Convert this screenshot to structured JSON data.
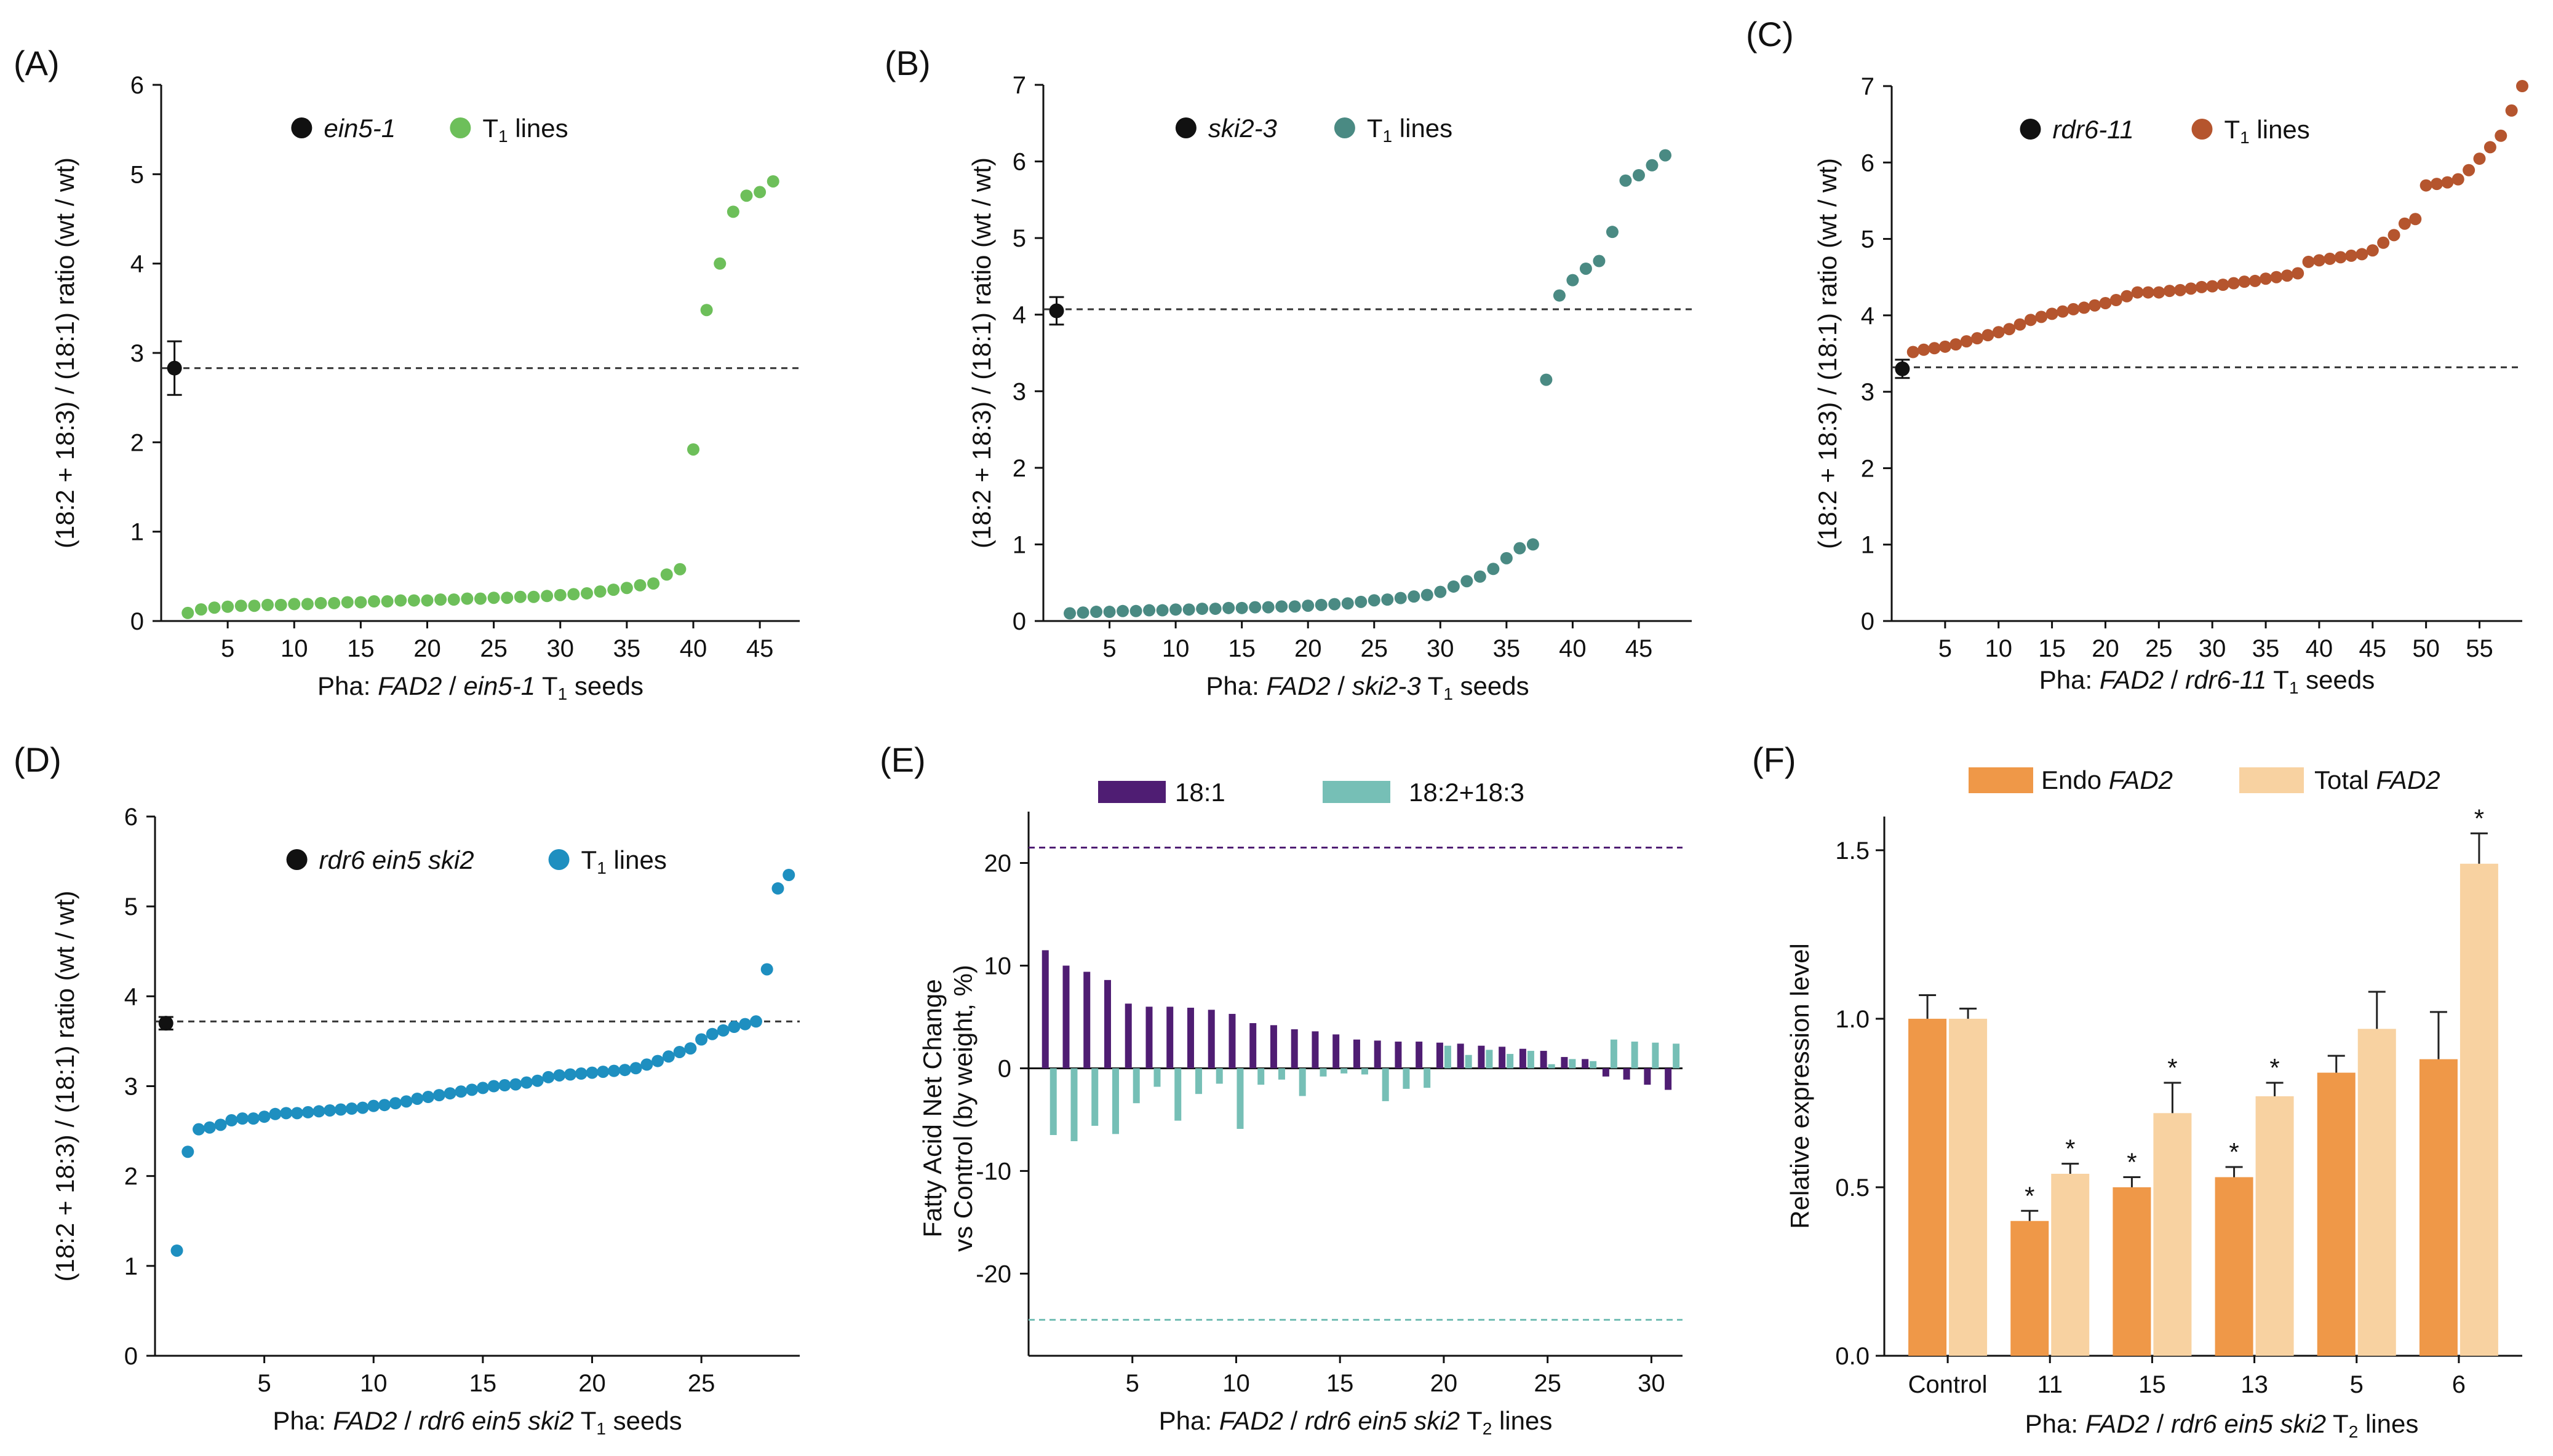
{
  "colors": {
    "black": "#111111",
    "green": "#6dbf5a",
    "teal": "#4a8a83",
    "rust": "#b5552e",
    "blue": "#1e8fc0",
    "purple": "#4f1d73",
    "mint": "#76bfb6",
    "orange": "#ef9848",
    "peach": "#f8d2a1"
  },
  "chart_data": [
    {
      "panel": "(A)",
      "type": "scatter",
      "xlabel_prefix": "Pha: ",
      "xlabel_gene": "FAD2",
      "xlabel_mid": " / ",
      "xlabel_genotype": "ein5-1",
      "xlabel_suffix": " T",
      "xlabel_subscript": "1",
      "xlabel_end": " seeds",
      "ylabel": "(18:2 + 18:3) / (18:1) ratio (wt / wt)",
      "xlim": [
        0,
        48
      ],
      "ylim": [
        0,
        6
      ],
      "xticks": [
        5,
        10,
        15,
        20,
        25,
        30,
        35,
        40,
        45
      ],
      "yticks": [
        0,
        1,
        2,
        3,
        4,
        5,
        6
      ],
      "legend": [
        {
          "label": "ein5-1",
          "italic": true,
          "color": "black"
        },
        {
          "label": "T",
          "sub": "1",
          "rest": " lines",
          "color": "green"
        }
      ],
      "control": {
        "x": 1,
        "y": 2.83,
        "err": 0.3
      },
      "reference_line": 2.83,
      "series_x_start": 2,
      "values": [
        0.09,
        0.13,
        0.15,
        0.16,
        0.17,
        0.17,
        0.18,
        0.18,
        0.19,
        0.19,
        0.2,
        0.2,
        0.21,
        0.21,
        0.22,
        0.22,
        0.23,
        0.23,
        0.23,
        0.24,
        0.24,
        0.25,
        0.25,
        0.26,
        0.26,
        0.27,
        0.27,
        0.28,
        0.29,
        0.3,
        0.31,
        0.33,
        0.35,
        0.37,
        0.4,
        0.42,
        0.52,
        0.58,
        1.92,
        3.48,
        4.0,
        4.58,
        4.76,
        4.8,
        4.92
      ]
    },
    {
      "panel": "(B)",
      "type": "scatter",
      "xlabel_prefix": "Pha: ",
      "xlabel_gene": "FAD2",
      "xlabel_mid": " / ",
      "xlabel_genotype": "ski2-3",
      "xlabel_suffix": " T",
      "xlabel_subscript": "1",
      "xlabel_end": " seeds",
      "ylabel": "(18:2 + 18:3) / (18:1) ratio (wt / wt)",
      "xlim": [
        0,
        49
      ],
      "ylim": [
        0,
        7
      ],
      "xticks": [
        5,
        10,
        15,
        20,
        25,
        30,
        35,
        40,
        45
      ],
      "yticks": [
        0,
        1,
        2,
        3,
        4,
        5,
        6,
        7
      ],
      "legend": [
        {
          "label": "ski2-3",
          "italic": true,
          "color": "black"
        },
        {
          "label": "T",
          "sub": "1",
          "rest": " lines",
          "color": "teal"
        }
      ],
      "control": {
        "x": 1,
        "y": 4.05,
        "err": 0.18
      },
      "reference_line": 4.07,
      "series_x_start": 2,
      "values": [
        0.1,
        0.11,
        0.12,
        0.12,
        0.13,
        0.13,
        0.14,
        0.14,
        0.15,
        0.15,
        0.16,
        0.16,
        0.17,
        0.17,
        0.18,
        0.18,
        0.19,
        0.19,
        0.2,
        0.21,
        0.22,
        0.23,
        0.25,
        0.27,
        0.28,
        0.3,
        0.32,
        0.34,
        0.38,
        0.45,
        0.52,
        0.58,
        0.68,
        0.82,
        0.95,
        1.0,
        3.15,
        4.25,
        4.45,
        4.6,
        4.7,
        5.08,
        5.75,
        5.82,
        5.95,
        6.08
      ]
    },
    {
      "panel": "(C)",
      "type": "scatter",
      "xlabel_prefix": "Pha: ",
      "xlabel_gene": "FAD2",
      "xlabel_mid": " / ",
      "xlabel_genotype": "rdr6-11",
      "xlabel_suffix": " T",
      "xlabel_subscript": "1",
      "xlabel_end": " seeds",
      "ylabel": "(18:2 + 18:3) / (18:1) ratio (wt / wt)",
      "xlim": [
        0,
        59
      ],
      "ylim": [
        0,
        7
      ],
      "xticks": [
        5,
        10,
        15,
        20,
        25,
        30,
        35,
        40,
        45,
        50,
        55
      ],
      "yticks": [
        0,
        1,
        2,
        3,
        4,
        5,
        6,
        7
      ],
      "legend": [
        {
          "label": "rdr6-11",
          "italic": true,
          "color": "black"
        },
        {
          "label": "T",
          "sub": "1",
          "rest": " lines",
          "color": "rust"
        }
      ],
      "control": {
        "x": 1,
        "y": 3.3,
        "err": 0.12
      },
      "reference_line": 3.32,
      "series_x_start": 2,
      "values": [
        3.52,
        3.55,
        3.57,
        3.59,
        3.62,
        3.66,
        3.7,
        3.74,
        3.78,
        3.82,
        3.88,
        3.94,
        3.98,
        4.02,
        4.05,
        4.08,
        4.1,
        4.13,
        4.16,
        4.2,
        4.25,
        4.3,
        4.3,
        4.3,
        4.32,
        4.33,
        4.35,
        4.37,
        4.38,
        4.4,
        4.42,
        4.44,
        4.45,
        4.48,
        4.5,
        4.52,
        4.55,
        4.7,
        4.72,
        4.74,
        4.76,
        4.78,
        4.8,
        4.85,
        4.95,
        5.05,
        5.2,
        5.26,
        5.7,
        5.72,
        5.74,
        5.78,
        5.9,
        6.05,
        6.2,
        6.35,
        6.68,
        7.0
      ]
    },
    {
      "panel": "(D)",
      "type": "scatter",
      "xlabel_prefix": "Pha: ",
      "xlabel_gene": "FAD2",
      "xlabel_mid": " / ",
      "xlabel_genotype": "rdr6 ein5 ski2",
      "xlabel_suffix": " T",
      "xlabel_subscript": "1",
      "xlabel_end": " seeds",
      "ylabel": "(18:2 + 18:3) / (18:1) ratio (wt / wt)",
      "xlim": [
        0,
        29.5
      ],
      "ylim": [
        0,
        6
      ],
      "xticks": [
        5,
        10,
        15,
        20,
        25
      ],
      "yticks": [
        0,
        1,
        2,
        3,
        4,
        5,
        6
      ],
      "legend": [
        {
          "label": "rdr6 ein5 ski2",
          "italic": true,
          "color": "black"
        },
        {
          "label": "T",
          "sub": "1",
          "rest": " lines",
          "color": "blue"
        }
      ],
      "control": {
        "x": 0.5,
        "y": 3.7,
        "err": 0.07
      },
      "reference_line": 3.72,
      "series_x_start": 1,
      "series_x_step": 0.5,
      "values": [
        1.17,
        2.27,
        2.52,
        2.54,
        2.57,
        2.62,
        2.64,
        2.64,
        2.66,
        2.69,
        2.7,
        2.7,
        2.71,
        2.72,
        2.73,
        2.74,
        2.75,
        2.76,
        2.78,
        2.79,
        2.81,
        2.83,
        2.86,
        2.88,
        2.9,
        2.92,
        2.94,
        2.96,
        2.98,
        3.0,
        3.01,
        3.02,
        3.04,
        3.06,
        3.1,
        3.12,
        3.13,
        3.14,
        3.15,
        3.16,
        3.17,
        3.18,
        3.2,
        3.24,
        3.28,
        3.33,
        3.38,
        3.42,
        3.52,
        3.58,
        3.62,
        3.66,
        3.69,
        3.72,
        4.3,
        5.2,
        5.35
      ]
    },
    {
      "panel": "(E)",
      "type": "bar",
      "xlabel_prefix": "Pha: ",
      "xlabel_gene": "FAD2",
      "xlabel_mid": " / ",
      "xlabel_genotype": "rdr6 ein5 ski2",
      "xlabel_suffix": " T",
      "xlabel_subscript": "2",
      "xlabel_end": " lines",
      "ylabel_line1": "Fatty Acid Net Change",
      "ylabel_line2": "vs Control (by weight, %)",
      "xlim": [
        0,
        31.5
      ],
      "ylim": [
        -28,
        25
      ],
      "xticks": [
        5,
        10,
        15,
        20,
        25,
        30
      ],
      "yticks": [
        -20,
        -10,
        0,
        10,
        20
      ],
      "legend": [
        {
          "label": "18:1",
          "color": "purple"
        },
        {
          "label": "18:2+18:3",
          "color": "mint"
        }
      ],
      "reference_lines": [
        {
          "y": 21.5,
          "color": "purple"
        },
        {
          "y": -24.5,
          "color": "mint"
        }
      ],
      "categories": [
        1,
        2,
        3,
        4,
        5,
        6,
        7,
        8,
        9,
        10,
        11,
        12,
        13,
        14,
        15,
        16,
        17,
        18,
        19,
        20,
        21,
        22,
        23,
        24,
        25,
        26,
        27,
        28,
        29,
        30,
        31
      ],
      "series": [
        {
          "name": "18:1",
          "values": [
            11.5,
            10.0,
            9.4,
            8.6,
            6.3,
            6.0,
            6.0,
            5.9,
            5.7,
            5.3,
            4.4,
            4.2,
            3.8,
            3.6,
            3.3,
            2.8,
            2.7,
            2.6,
            2.6,
            2.5,
            2.4,
            2.2,
            2.1,
            1.9,
            1.7,
            1.1,
            0.9,
            -0.8,
            -1.1,
            -1.6,
            -2.1
          ]
        },
        {
          "name": "18:2+18:3",
          "values": [
            -6.5,
            -7.1,
            -5.6,
            -6.4,
            -3.4,
            -1.8,
            -5.1,
            -2.5,
            -1.5,
            -5.9,
            -1.6,
            -1.1,
            -2.7,
            -0.8,
            -0.5,
            -0.6,
            -3.2,
            -2.0,
            -1.9,
            2.2,
            1.3,
            1.8,
            1.4,
            1.7,
            0.4,
            0.9,
            0.7,
            2.8,
            2.6,
            2.5,
            2.4
          ]
        }
      ]
    },
    {
      "panel": "(F)",
      "type": "bar",
      "xlabel_prefix": "Pha: ",
      "xlabel_gene": "FAD2",
      "xlabel_mid": " / ",
      "xlabel_genotype": "rdr6 ein5 ski2",
      "xlabel_suffix": " T",
      "xlabel_subscript": "2",
      "xlabel_end": " lines",
      "ylabel": "Relative expression level",
      "ylim": [
        0,
        1.6
      ],
      "yticks": [
        "0.0",
        "0.5",
        "1.0",
        "1.5"
      ],
      "ytick_values": [
        0,
        0.5,
        1.0,
        1.5
      ],
      "legend": [
        {
          "label": "Endo ",
          "italic_part": "FAD2",
          "color": "orange"
        },
        {
          "label": "Total ",
          "italic_part": "FAD2",
          "color": "peach"
        }
      ],
      "categories": [
        "Control",
        "11",
        "15",
        "13",
        "5",
        "6"
      ],
      "series": [
        {
          "name": "Endo FAD2",
          "values": [
            1.0,
            0.4,
            0.5,
            0.53,
            0.84,
            0.88
          ],
          "errors": [
            0.07,
            0.03,
            0.03,
            0.03,
            0.05,
            0.14
          ],
          "significant": [
            false,
            true,
            true,
            true,
            false,
            false
          ]
        },
        {
          "name": "Total FAD2",
          "values": [
            1.0,
            0.54,
            0.72,
            0.77,
            0.97,
            1.46
          ],
          "errors": [
            0.03,
            0.03,
            0.09,
            0.04,
            0.11,
            0.09
          ],
          "significant": [
            false,
            true,
            true,
            true,
            false,
            true
          ]
        }
      ],
      "significance_mark": "*"
    }
  ]
}
